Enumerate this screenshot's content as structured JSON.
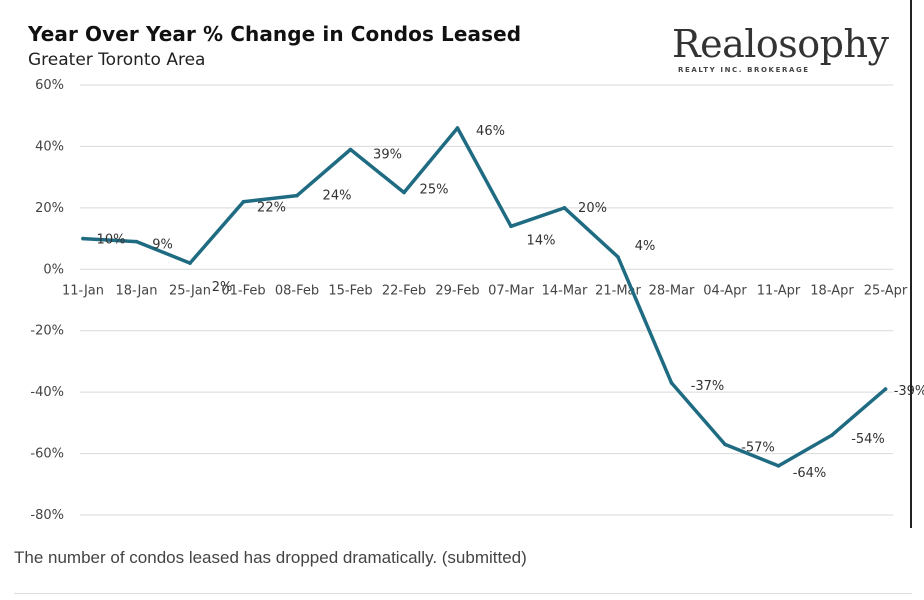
{
  "chart_data": {
    "type": "line",
    "title": "Year Over Year % Change in Condos Leased",
    "subtitle": "Greater Toronto Area",
    "categories": [
      "11-Jan",
      "18-Jan",
      "25-Jan",
      "01-Feb",
      "08-Feb",
      "15-Feb",
      "22-Feb",
      "29-Feb",
      "07-Mar",
      "14-Mar",
      "21-Mar",
      "28-Mar",
      "04-Apr",
      "11-Apr",
      "18-Apr",
      "25-Apr"
    ],
    "series": [
      {
        "name": "YoY % change",
        "values": [
          10,
          9,
          2,
          22,
          24,
          39,
          25,
          46,
          14,
          20,
          4,
          -37,
          -57,
          -64,
          -54,
          -39
        ]
      }
    ],
    "data_labels": [
      "10%",
      "9%",
      "2%",
      "22%",
      "24%",
      "39%",
      "25%",
      "46%",
      "14%",
      "20%",
      "4%",
      "-37%",
      "-57%",
      "-64%",
      "-54%",
      "-39%"
    ],
    "ylim": [
      -80,
      60
    ],
    "yticks": [
      60,
      40,
      20,
      0,
      -20,
      -40,
      -60,
      -80
    ],
    "ytick_labels": [
      "60%",
      "40%",
      "20%",
      "0%",
      "-20%",
      "-40%",
      "-60%",
      "-80%"
    ],
    "xlabel": "",
    "ylabel": "",
    "grid": true,
    "line_color": "#1f6b82"
  },
  "brand": {
    "name": "Realosophy",
    "tagline": "REALTY INC. BROKERAGE"
  },
  "caption": "The number of condos leased has dropped dramatically. (submitted)"
}
